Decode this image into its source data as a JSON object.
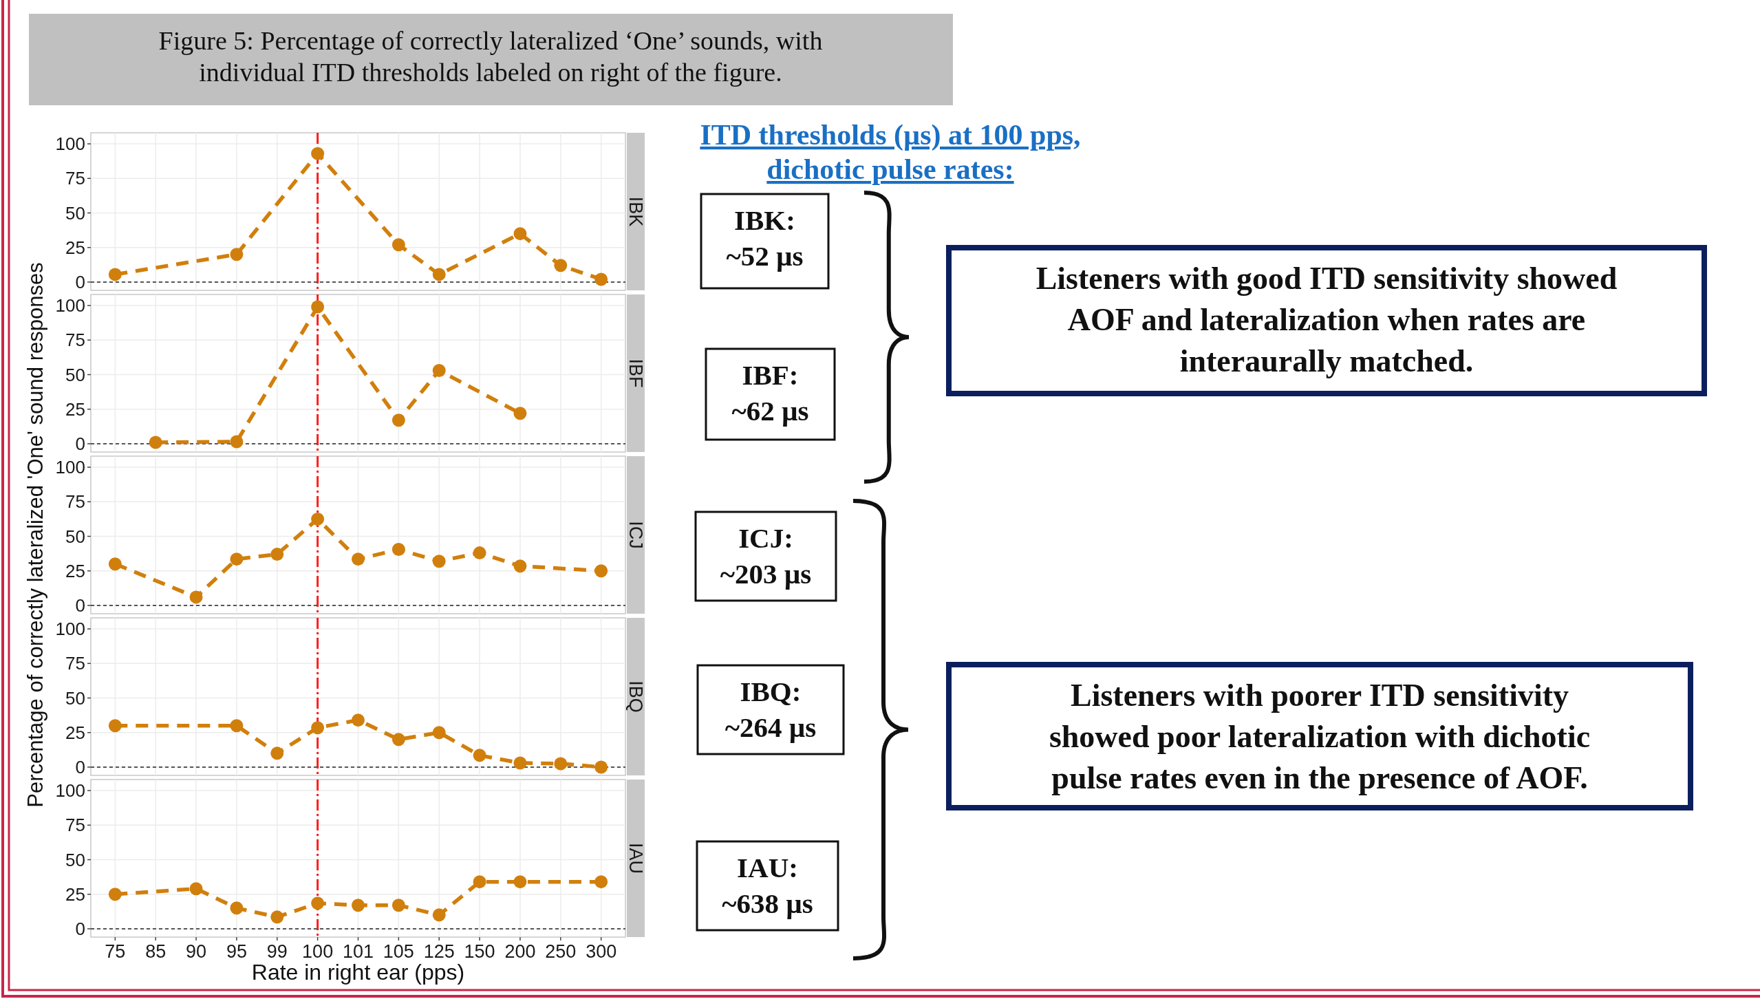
{
  "chart_data": [
    {
      "type": "line",
      "title": "IBK",
      "categories": [
        "75",
        "85",
        "90",
        "95",
        "99",
        "100",
        "101",
        "105",
        "125",
        "150",
        "200",
        "250",
        "300"
      ],
      "series": [
        {
          "color": "#d17f0c",
          "values": [
            5.5,
            null,
            null,
            20,
            null,
            93,
            null,
            27,
            5.5,
            null,
            35,
            12,
            2
          ]
        }
      ],
      "ylim": [
        -6,
        108
      ],
      "yticks": [
        0,
        25,
        50,
        75,
        100
      ],
      "grid": true,
      "marker": "circle",
      "line_style": "dashed",
      "tick_labels": "y",
      "ref_lines": [
        {
          "axis": "x",
          "value": "100",
          "color": "#ff1a1a",
          "line_style": "dashed"
        },
        {
          "axis": "y",
          "value": 0,
          "color": "#555555",
          "line_style": "dotted"
        }
      ]
    },
    {
      "type": "line",
      "title": "IBF",
      "categories": [
        "75",
        "85",
        "90",
        "95",
        "99",
        "100",
        "101",
        "105",
        "125",
        "150",
        "200",
        "250",
        "300"
      ],
      "series": [
        {
          "color": "#d17f0c",
          "values": [
            null,
            1,
            null,
            1.5,
            null,
            99,
            null,
            17,
            53,
            null,
            22,
            null,
            null
          ]
        }
      ],
      "ylim": [
        -6,
        108
      ],
      "yticks": [
        0,
        25,
        50,
        75,
        100
      ],
      "grid": true,
      "marker": "circle",
      "line_style": "dashed",
      "tick_labels": "y",
      "ref_lines": [
        {
          "axis": "x",
          "value": "100",
          "color": "#ff1a1a",
          "line_style": "dashed"
        },
        {
          "axis": "y",
          "value": 0,
          "color": "#555555",
          "line_style": "dotted"
        }
      ]
    },
    {
      "type": "line",
      "title": "ICJ",
      "ylabel": "Percentage of correctly lateralized 'One' sound responses",
      "categories": [
        "75",
        "85",
        "90",
        "95",
        "99",
        "100",
        "101",
        "105",
        "125",
        "150",
        "200",
        "250",
        "300"
      ],
      "series": [
        {
          "color": "#d17f0c",
          "values": [
            30,
            null,
            6,
            33.5,
            37,
            62.5,
            33.5,
            40.5,
            32,
            38,
            28.5,
            null,
            25
          ]
        }
      ],
      "ylim": [
        -6,
        108
      ],
      "yticks": [
        0,
        25,
        50,
        75,
        100
      ],
      "grid": true,
      "marker": "circle",
      "line_style": "dashed",
      "tick_labels": "y",
      "ref_lines": [
        {
          "axis": "x",
          "value": "100",
          "color": "#ff1a1a",
          "line_style": "dashed"
        },
        {
          "axis": "y",
          "value": 0,
          "color": "#555555",
          "line_style": "dotted"
        }
      ]
    },
    {
      "type": "line",
      "title": "IBQ",
      "categories": [
        "75",
        "85",
        "90",
        "95",
        "99",
        "100",
        "101",
        "105",
        "125",
        "150",
        "200",
        "250",
        "300"
      ],
      "series": [
        {
          "color": "#d17f0c",
          "values": [
            30,
            null,
            null,
            30,
            10,
            28.5,
            34,
            20,
            25,
            8.5,
            3,
            2.5,
            0
          ]
        }
      ],
      "ylim": [
        -6,
        108
      ],
      "yticks": [
        0,
        25,
        50,
        75,
        100
      ],
      "grid": true,
      "marker": "circle",
      "line_style": "dashed",
      "tick_labels": "y",
      "ref_lines": [
        {
          "axis": "x",
          "value": "100",
          "color": "#ff1a1a",
          "line_style": "dashed"
        },
        {
          "axis": "y",
          "value": 0,
          "color": "#555555",
          "line_style": "dotted"
        }
      ]
    },
    {
      "type": "line",
      "title": "IAU",
      "xlabel": "Rate in right ear (pps)",
      "categories": [
        "75",
        "85",
        "90",
        "95",
        "99",
        "100",
        "101",
        "105",
        "125",
        "150",
        "200",
        "250",
        "300"
      ],
      "series": [
        {
          "color": "#d17f0c",
          "values": [
            25,
            null,
            29,
            15,
            8.5,
            18.5,
            17,
            17,
            10,
            34,
            34,
            null,
            34
          ]
        }
      ],
      "ylim": [
        -6,
        108
      ],
      "yticks": [
        0,
        25,
        50,
        75,
        100
      ],
      "grid": true,
      "marker": "circle",
      "line_style": "dashed",
      "ref_lines": [
        {
          "axis": "x",
          "value": "100",
          "color": "#ff1a1a",
          "line_style": "dashed"
        },
        {
          "axis": "y",
          "value": 0,
          "color": "#555555",
          "line_style": "dotted"
        }
      ]
    },
    {
      "type": "other",
      "title": "Figure 5:  Percentage of  correctly lateralized ‘One’ sounds, with\nindividual ITD thresholds labeled on right of the figure.",
      "subtitle": "ITD thresholds (µs) at 100 pps,\ndichotic pulse rates:",
      "annotations": [
        "IBK:\n~52 µs",
        "IBF:\n~62 µs",
        "ICJ:\n~203 µs",
        "IBQ:\n~264 µs",
        "IAU:\n~638 µs",
        "Listeners with good ITD sensitivity showed\nAOF and lateralization when rates are\ninteraurally matched.",
        "Listeners with poorer ITD sensitivity\nshowed poor lateralization with dichotic\npulse rates even in the presence of AOF."
      ]
    }
  ]
}
